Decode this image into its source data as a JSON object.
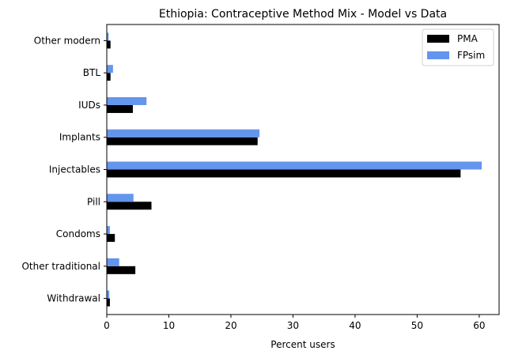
{
  "chart_data": {
    "type": "bar",
    "orientation": "horizontal",
    "title": "Ethiopia: Contraceptive Method Mix - Model vs Data",
    "xlabel": "Percent users",
    "ylabel": "",
    "xlim": [
      0,
      63.2
    ],
    "xticks": [
      0,
      10,
      20,
      30,
      40,
      50,
      60
    ],
    "grid": false,
    "legend_position": "top-right",
    "categories": [
      "Withdrawal",
      "Other traditional",
      "Condoms",
      "Pill",
      "Injectables",
      "Implants",
      "IUDs",
      "BTL",
      "Other modern"
    ],
    "series": [
      {
        "name": "PMA",
        "color": "#000000",
        "values": [
          0.5,
          4.6,
          1.3,
          7.2,
          57.0,
          24.3,
          4.2,
          0.6,
          0.6
        ]
      },
      {
        "name": "FPsim",
        "color": "#6495ED",
        "values": [
          0.4,
          2.0,
          0.5,
          4.3,
          60.4,
          24.6,
          6.4,
          1.0,
          0.3
        ]
      }
    ]
  }
}
